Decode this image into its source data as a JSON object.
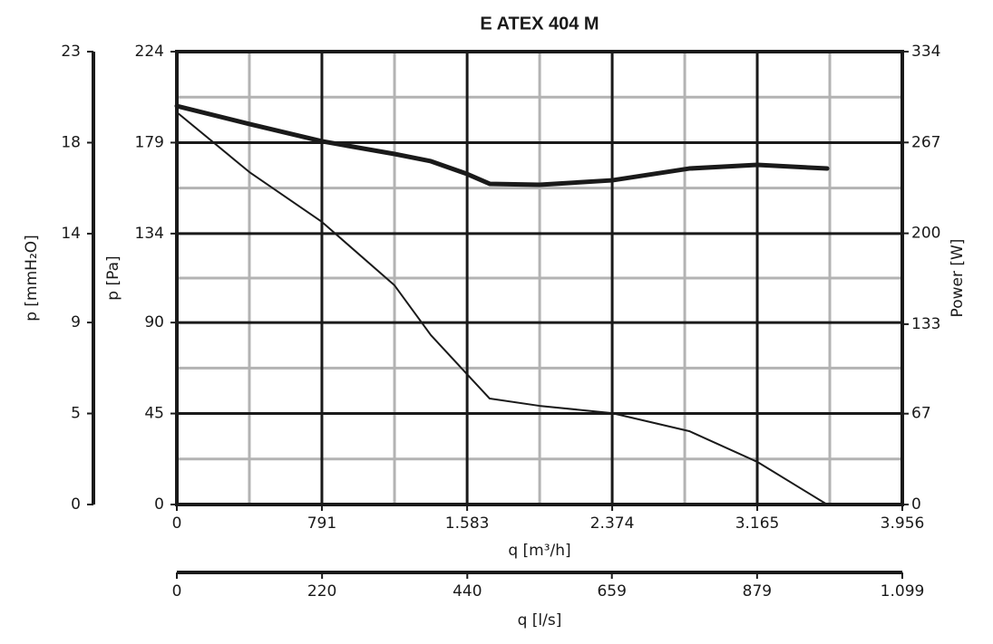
{
  "chart_data": {
    "type": "line",
    "title": "E ATEX 404 M",
    "xlabel": "q [m³/h]",
    "ylabel": "p [Pa]",
    "y2label": "Power [W]",
    "y3label": "p [mmH₂O]",
    "x2label": "q [l/s]",
    "xlim": [
      0,
      3956
    ],
    "xticks": [
      0,
      791,
      {
        "value": 1583,
        "label": "1.583"
      },
      {
        "value": 2374,
        "label": "2.374"
      },
      {
        "value": 3165,
        "label": "3.165"
      },
      {
        "value": 3956,
        "label": "3.956"
      }
    ],
    "x2lim": [
      0,
      1099
    ],
    "x2ticks": [
      0,
      220,
      440,
      659,
      879,
      {
        "value": 1099,
        "label": "1.099"
      }
    ],
    "ylim": [
      0,
      224
    ],
    "yticks": [
      0,
      45,
      90,
      134,
      179,
      224
    ],
    "y2lim": [
      0,
      334
    ],
    "y2ticks": [
      0,
      67,
      133,
      200,
      267,
      334
    ],
    "y3lim": [
      0,
      22.84
    ],
    "y3ticks": [
      0,
      {
        "value": 4.59,
        "label": "5"
      },
      {
        "value": 9.18,
        "label": "9"
      },
      {
        "value": 13.66,
        "label": "14"
      },
      {
        "value": 18.25,
        "label": "18"
      },
      {
        "value": 22.84,
        "label": "23"
      }
    ],
    "grid": true,
    "series": [
      {
        "color": "#1a1a1a",
        "line_width": 2,
        "axis": "y",
        "x": [
          0,
          396,
          791,
          1187,
          1385,
          1582,
          1706,
          1978,
          2374,
          2794,
          3165,
          3546
        ],
        "values": [
          194,
          164.4,
          139.8,
          108.4,
          83.8,
          64.5,
          52.4,
          48.8,
          45.2,
          36.3,
          21.1,
          0
        ]
      },
      {
        "color": "#1a1a1a",
        "line_width": 5,
        "axis": "y2",
        "x": [
          0,
          396,
          791,
          1187,
          1385,
          1582,
          1706,
          1978,
          2374,
          2794,
          3165,
          3546
        ],
        "values": [
          293.9,
          280.6,
          267.9,
          258.5,
          253.2,
          243.8,
          236.5,
          235.8,
          239.1,
          247.8,
          250.5,
          247.8
        ]
      }
    ]
  }
}
